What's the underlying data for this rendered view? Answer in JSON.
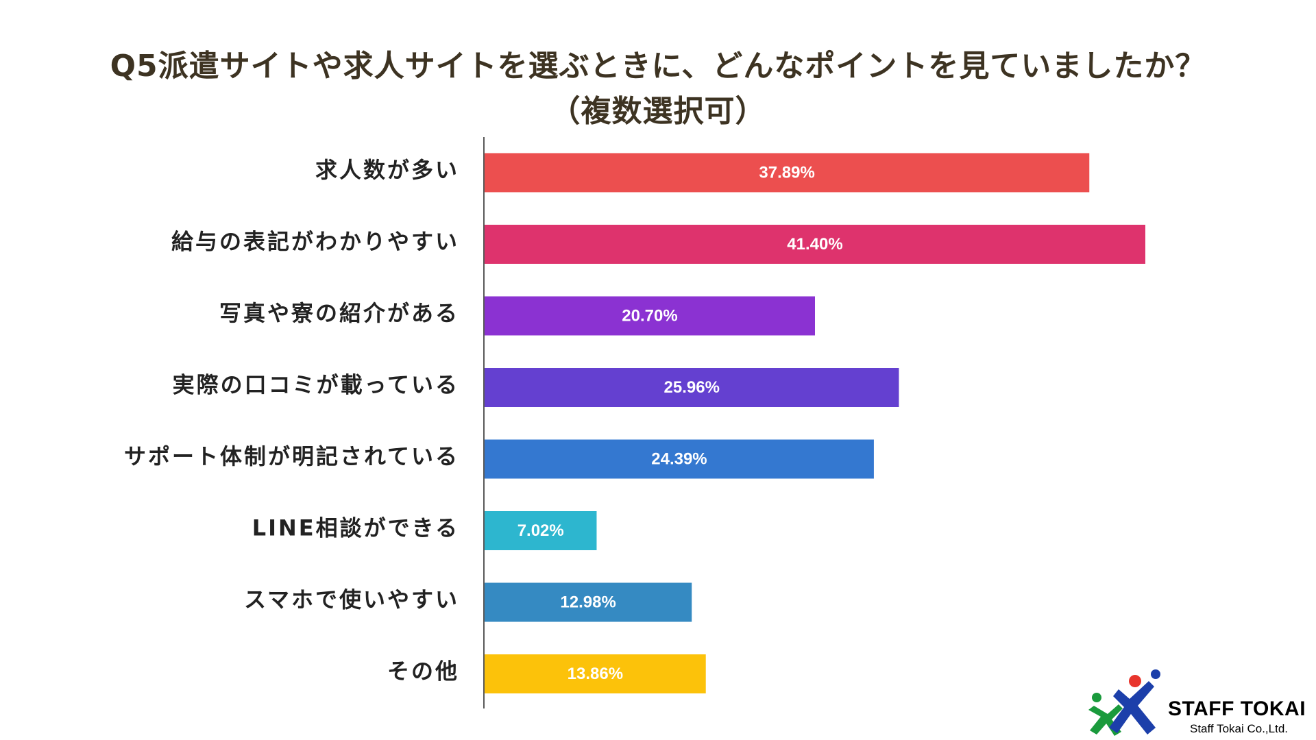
{
  "title_line1": "Q5派遣サイトや求人サイトを選ぶときに、どんなポイントを見ていましたか？",
  "title_line2": "（複数選択可）",
  "chart_data": {
    "type": "bar",
    "orientation": "horizontal",
    "title": "Q5派遣サイトや求人サイトを選ぶときに、どんなポイントを見ていましたか？（複数選択可）",
    "categories": [
      "求人数が多い",
      "給与の表記がわかりやすい",
      "写真や寮の紹介がある",
      "実際の口コミが載っている",
      "サポート体制が明記されている",
      "LINE相談ができる",
      "スマホで使いやすい",
      "その他"
    ],
    "values": [
      37.89,
      41.4,
      20.7,
      25.96,
      24.39,
      7.02,
      12.98,
      13.86
    ],
    "value_labels": [
      "37.89%",
      "41.40%",
      "20.70%",
      "25.96%",
      "24.39%",
      "7.02%",
      "12.98%",
      "13.86%"
    ],
    "colors": [
      "#ec4f4f",
      "#de336d",
      "#8b32d2",
      "#6440d0",
      "#3478d0",
      "#2db6cf",
      "#358ac2",
      "#fcc20a"
    ],
    "xlim": [
      0,
      45
    ],
    "grid": false,
    "legend": false
  },
  "logo": {
    "name": "STAFF TOKAI",
    "subtitle": "Staff Tokai Co.,Ltd.",
    "icon": "staff-tokai-people-logo-icon",
    "colors": [
      "#1a9a3c",
      "#1c3faa",
      "#e8352c"
    ]
  }
}
